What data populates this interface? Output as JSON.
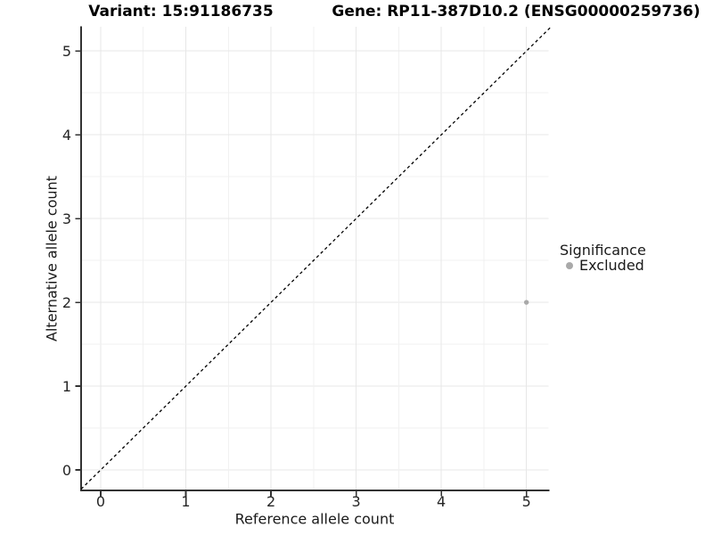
{
  "chart_data": {
    "type": "scatter",
    "titles": {
      "variant": "Variant: 15:91186735",
      "gene": "Gene: RP11-387D10.2 (ENSG00000259736)"
    },
    "xlabel": "Reference allele count",
    "ylabel": "Alternative allele count",
    "x_ticks": [
      0,
      1,
      2,
      3,
      4,
      5
    ],
    "y_ticks": [
      0,
      1,
      2,
      3,
      4,
      5
    ],
    "xlim": [
      -0.23,
      5.26
    ],
    "ylim": [
      -0.245,
      5.29
    ],
    "minor_grid_step": 0.5,
    "grid": "on",
    "points": [
      {
        "x": 5,
        "y": 2,
        "series": "Excluded"
      }
    ],
    "identity_line": {
      "style": "dashed",
      "color": "#000000",
      "dash": "3.4 3.1",
      "width": 1.3
    },
    "legend": {
      "title": "Significance",
      "position": "right",
      "items": [
        {
          "label": "Excluded",
          "color": "#a9a9a9"
        }
      ]
    }
  },
  "colors": {
    "grid_major": "#e7e7e7",
    "grid_minor": "#f1f1f1",
    "axis_line": "#333333",
    "tick_mark": "#333333",
    "tick_label": "#262626",
    "point": "#a9a9a9"
  }
}
